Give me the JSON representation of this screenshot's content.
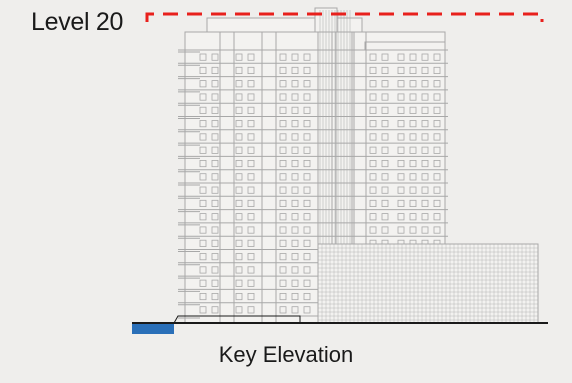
{
  "level_label": "Level 20",
  "caption": "Key Elevation",
  "colors": {
    "background": "#efeeec",
    "highlight_dash": "#e8201c",
    "drawing_line": "#a8a8a8",
    "ground_line": "#1a1a1a",
    "marker": "#2a6fb8"
  },
  "highlighted_level": 20,
  "floor_count": 20
}
